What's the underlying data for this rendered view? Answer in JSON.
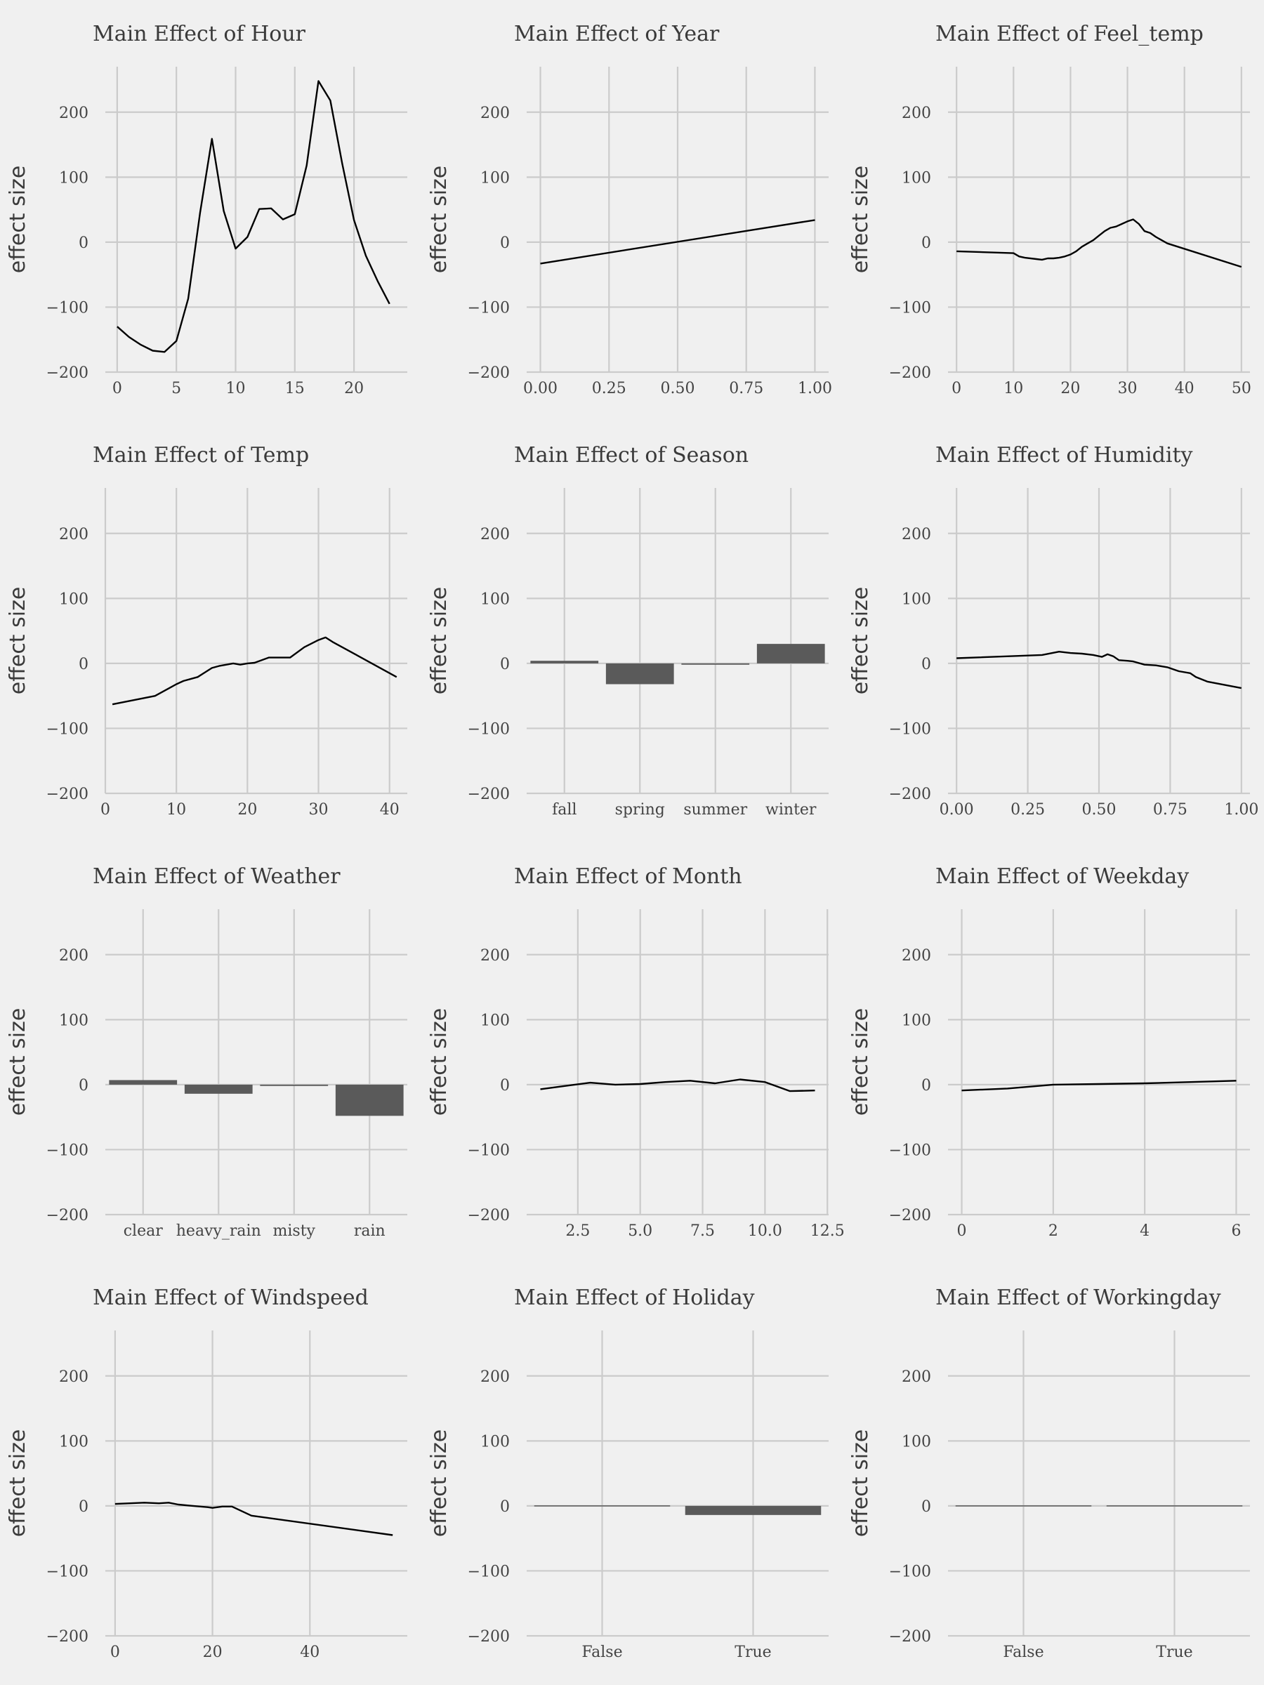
{
  "chart_data": [
    {
      "type": "line",
      "title": "Main Effect of Hour",
      "xlabel": "",
      "ylabel": "effect size",
      "ylim": [
        -200,
        270
      ],
      "xlim": [
        -1,
        24.5
      ],
      "xticks": [
        0,
        5,
        10,
        15,
        20
      ],
      "tick_labels": [
        "0",
        "5",
        "10",
        "15",
        "20"
      ],
      "yticks": [
        -200,
        -100,
        0,
        100,
        200
      ],
      "ytick_labels": [
        "−200",
        "−100",
        "0",
        "100",
        "200"
      ],
      "x": [
        0,
        1,
        2,
        3,
        4,
        5,
        6,
        7,
        8,
        9,
        10,
        11,
        12,
        13,
        14,
        15,
        16,
        17,
        18,
        19,
        20,
        21,
        22,
        23
      ],
      "y": [
        -130,
        -146,
        -158,
        -167,
        -169,
        -152,
        -87,
        45,
        159,
        48,
        -10,
        8,
        51,
        52,
        35,
        43,
        118,
        248,
        218,
        121,
        34,
        -21,
        -60,
        -95
      ]
    },
    {
      "type": "line",
      "title": "Main Effect of Year",
      "xlabel": "",
      "ylabel": "effect size",
      "ylim": [
        -200,
        270
      ],
      "xlim": [
        -0.05,
        1.05
      ],
      "xticks": [
        0,
        0.25,
        0.5,
        0.75,
        1
      ],
      "tick_labels": [
        "0.00",
        "0.25",
        "0.50",
        "0.75",
        "1.00"
      ],
      "yticks": [
        -200,
        -100,
        0,
        100,
        200
      ],
      "ytick_labels": [
        "−200",
        "−100",
        "0",
        "100",
        "200"
      ],
      "x": [
        0,
        1
      ],
      "y": [
        -33,
        34
      ]
    },
    {
      "type": "line",
      "title": "Main Effect of Feel_temp",
      "xlabel": "",
      "ylabel": "effect size",
      "ylim": [
        -200,
        270
      ],
      "xlim": [
        -1.5,
        51.5
      ],
      "xticks": [
        0,
        10,
        20,
        30,
        40,
        50
      ],
      "tick_labels": [
        "0",
        "10",
        "20",
        "30",
        "40",
        "50"
      ],
      "yticks": [
        -200,
        -100,
        0,
        100,
        200
      ],
      "ytick_labels": [
        "−200",
        "−100",
        "0",
        "100",
        "200"
      ],
      "x": [
        0,
        10,
        11,
        12,
        14,
        15,
        16,
        17,
        18,
        19,
        20,
        21,
        22,
        23,
        24,
        25,
        26,
        27,
        28,
        29,
        30,
        31,
        32,
        33,
        34,
        35,
        37,
        50
      ],
      "y": [
        -14,
        -17,
        -22,
        -24,
        -26,
        -27,
        -25,
        -25,
        -24,
        -22,
        -19,
        -14,
        -7,
        -2,
        3,
        10,
        17,
        22,
        24,
        28,
        32,
        35,
        28,
        17,
        14,
        8,
        -2,
        -38
      ]
    },
    {
      "type": "line",
      "title": "Main Effect of Temp",
      "xlabel": "",
      "ylabel": "effect size",
      "ylim": [
        -200,
        270
      ],
      "xlim": [
        0,
        42.5
      ],
      "xticks": [
        0,
        10,
        20,
        30,
        40
      ],
      "tick_labels": [
        "0",
        "10",
        "20",
        "30",
        "40"
      ],
      "yticks": [
        -200,
        -100,
        0,
        100,
        200
      ],
      "ytick_labels": [
        "−200",
        "−100",
        "0",
        "100",
        "200"
      ],
      "x": [
        1,
        7,
        9,
        10,
        11,
        13,
        14,
        15,
        16,
        18,
        19,
        20,
        21,
        23,
        26,
        28,
        30,
        31,
        32,
        33,
        41
      ],
      "y": [
        -63,
        -50,
        -38,
        -32,
        -27,
        -21,
        -14,
        -7,
        -4,
        0,
        -2,
        0,
        1,
        9,
        9,
        25,
        36,
        40,
        33,
        27,
        -21
      ]
    },
    {
      "type": "bar",
      "title": "Main Effect of Season",
      "xlabel": "",
      "ylabel": "effect size",
      "ylim": [
        -200,
        270
      ],
      "categories": [
        "fall",
        "spring",
        "summer",
        "winter"
      ],
      "values": [
        4,
        -32,
        -2,
        30
      ],
      "yticks": [
        -200,
        -100,
        0,
        100,
        200
      ],
      "ytick_labels": [
        "−200",
        "−100",
        "0",
        "100",
        "200"
      ]
    },
    {
      "type": "line",
      "title": "Main Effect of Humidity",
      "xlabel": "",
      "ylabel": "effect size",
      "ylim": [
        -200,
        270
      ],
      "xlim": [
        -0.03,
        1.03
      ],
      "xticks": [
        0,
        0.25,
        0.5,
        0.75,
        1
      ],
      "tick_labels": [
        "0.00",
        "0.25",
        "0.50",
        "0.75",
        "1.00"
      ],
      "yticks": [
        -200,
        -100,
        0,
        100,
        200
      ],
      "ytick_labels": [
        "−200",
        "−100",
        "0",
        "100",
        "200"
      ],
      "x": [
        0,
        0.3,
        0.36,
        0.4,
        0.44,
        0.48,
        0.51,
        0.53,
        0.55,
        0.57,
        0.6,
        0.62,
        0.66,
        0.7,
        0.74,
        0.78,
        0.82,
        0.84,
        0.88,
        1
      ],
      "y": [
        8,
        13,
        18,
        16,
        15,
        13,
        10,
        14,
        11,
        5,
        4,
        3,
        -2,
        -3,
        -6,
        -12,
        -15,
        -21,
        -28,
        -38
      ]
    },
    {
      "type": "bar",
      "title": "Main Effect of Weather",
      "xlabel": "",
      "ylabel": "effect size",
      "ylim": [
        -200,
        270
      ],
      "categories": [
        "clear",
        "heavy_rain",
        "misty",
        "rain"
      ],
      "values": [
        7,
        -14,
        -2,
        -48
      ],
      "yticks": [
        -200,
        -100,
        0,
        100,
        200
      ],
      "ytick_labels": [
        "−200",
        "−100",
        "0",
        "100",
        "200"
      ]
    },
    {
      "type": "line",
      "title": "Main Effect of Month",
      "xlabel": "",
      "ylabel": "effect size",
      "ylim": [
        -200,
        270
      ],
      "xlim": [
        0.45,
        12.55
      ],
      "xticks": [
        2.5,
        5,
        7.5,
        10,
        12.5
      ],
      "tick_labels": [
        "2.5",
        "5.0",
        "7.5",
        "10.0",
        "12.5"
      ],
      "yticks": [
        -200,
        -100,
        0,
        100,
        200
      ],
      "ytick_labels": [
        "−200",
        "−100",
        "0",
        "100",
        "200"
      ],
      "x": [
        1,
        2,
        3,
        4,
        5,
        6,
        7,
        8,
        9,
        10,
        11,
        12
      ],
      "y": [
        -7,
        -2,
        3,
        0,
        1,
        4,
        6,
        2,
        8,
        4,
        -10,
        -9
      ]
    },
    {
      "type": "line",
      "title": "Main Effect of Weekday",
      "xlabel": "",
      "ylabel": "effect size",
      "ylim": [
        -200,
        270
      ],
      "xlim": [
        -0.3,
        6.3
      ],
      "xticks": [
        0,
        2,
        4,
        6
      ],
      "tick_labels": [
        "0",
        "2",
        "4",
        "6"
      ],
      "yticks": [
        -200,
        -100,
        0,
        100,
        200
      ],
      "ytick_labels": [
        "−200",
        "−100",
        "0",
        "100",
        "200"
      ],
      "x": [
        0,
        1,
        2,
        3,
        4,
        5,
        6
      ],
      "y": [
        -9,
        -6,
        0,
        1,
        2,
        4,
        6
      ]
    },
    {
      "type": "line",
      "title": "Main Effect of Windspeed",
      "xlabel": "",
      "ylabel": "effect size",
      "ylim": [
        -200,
        270
      ],
      "xlim": [
        -2,
        60
      ],
      "xticks": [
        0,
        20,
        40
      ],
      "tick_labels": [
        "0",
        "20",
        "40"
      ],
      "yticks": [
        -200,
        -100,
        0,
        100,
        200
      ],
      "ytick_labels": [
        "−200",
        "−100",
        "0",
        "100",
        "200"
      ],
      "x": [
        0,
        6,
        9,
        11,
        13,
        16,
        19,
        20,
        22,
        24,
        28,
        57
      ],
      "y": [
        3,
        5,
        4,
        5,
        2,
        0,
        -2,
        -3,
        -1,
        -1,
        -15,
        -45
      ]
    },
    {
      "type": "bar",
      "title": "Main Effect of Holiday",
      "xlabel": "",
      "ylabel": "effect size",
      "ylim": [
        -200,
        270
      ],
      "categories": [
        "False",
        "True"
      ],
      "values": [
        0,
        -14
      ],
      "yticks": [
        -200,
        -100,
        0,
        100,
        200
      ],
      "ytick_labels": [
        "−200",
        "−100",
        "0",
        "100",
        "200"
      ]
    },
    {
      "type": "bar",
      "title": "Main Effect of Workingday",
      "xlabel": "",
      "ylabel": "effect size",
      "ylim": [
        -200,
        270
      ],
      "categories": [
        "False",
        "True"
      ],
      "values": [
        0,
        0
      ],
      "yticks": [
        -200,
        -100,
        0,
        100,
        200
      ],
      "ytick_labels": [
        "−200",
        "−100",
        "0",
        "100",
        "200"
      ]
    }
  ]
}
